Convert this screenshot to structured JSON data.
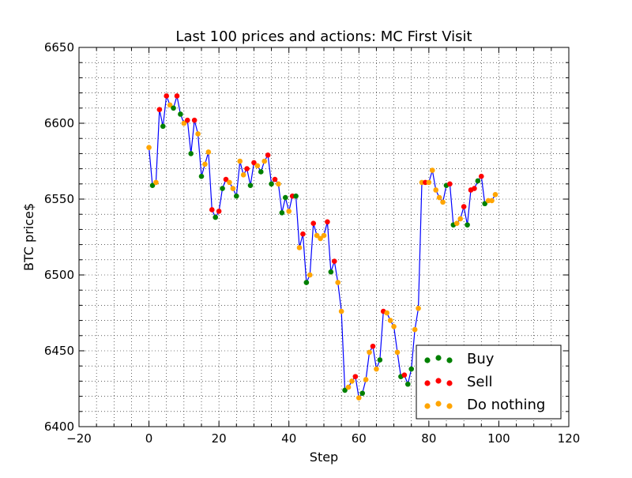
{
  "chart_data": {
    "type": "scatter",
    "title": "Last 100 prices and actions: MC First Visit",
    "xlabel": "Step",
    "ylabel": "BTC price$",
    "xlim": [
      -20,
      120
    ],
    "ylim": [
      6400,
      6650
    ],
    "x_major_ticks": [
      -20,
      0,
      20,
      40,
      60,
      80,
      100,
      120
    ],
    "y_major_ticks": [
      6400,
      6450,
      6500,
      6550,
      6600,
      6650
    ],
    "x_tick_labels": [
      "−20",
      "0",
      "20",
      "40",
      "60",
      "80",
      "100",
      "120"
    ],
    "y_tick_labels": [
      "6400",
      "6450",
      "6500",
      "6550",
      "6600",
      "6650"
    ],
    "x_minor_step": 5,
    "y_minor_step": 10,
    "grid": "dotted, major and minor",
    "legend_position": "bottom-right",
    "line_color": "#0000ff",
    "legend": [
      {
        "label": "Buy",
        "color": "#008000"
      },
      {
        "label": "Sell",
        "color": "#ff0000"
      },
      {
        "label": "Do nothing",
        "color": "#ffa500"
      }
    ],
    "action_colors": {
      "buy": "#008000",
      "sell": "#ff0000",
      "hold": "#ffa500"
    },
    "prices": [
      6584,
      6559,
      6561,
      6609,
      6598,
      6618,
      6612,
      6610,
      6618,
      6606,
      6600,
      6602,
      6580,
      6602,
      6593,
      6565,
      6573,
      6581,
      6543,
      6538,
      6542,
      6557,
      6563,
      6561,
      6557,
      6552,
      6575,
      6566,
      6570,
      6559,
      6574,
      6572,
      6568,
      6575,
      6579,
      6560,
      6563,
      6560,
      6541,
      6551,
      6542,
      6552,
      6552,
      6518,
      6527,
      6495,
      6500,
      6534,
      6526,
      6524,
      6526,
      6535,
      6502,
      6509,
      6495,
      6476,
      6424,
      6426,
      6430,
      6433,
      6419,
      6422,
      6431,
      6449,
      6453,
      6438,
      6444,
      6476,
      6475,
      6470,
      6466,
      6449,
      6433,
      6434,
      6428,
      6438,
      6464,
      6478,
      6561,
      6561,
      6561,
      6569,
      6556,
      6551,
      6548,
      6559,
      6560,
      6533,
      6534,
      6537,
      6545,
      6533,
      6556,
      6557,
      6562,
      6565,
      6547,
      6549,
      6549,
      6553
    ],
    "actions": [
      "hold",
      "buy",
      "hold",
      "sell",
      "buy",
      "sell",
      "hold",
      "buy",
      "sell",
      "buy",
      "hold",
      "sell",
      "buy",
      "sell",
      "hold",
      "buy",
      "hold",
      "hold",
      "sell",
      "buy",
      "sell",
      "buy",
      "sell",
      "hold",
      "hold",
      "buy",
      "hold",
      "hold",
      "sell",
      "buy",
      "sell",
      "hold",
      "buy",
      "hold",
      "sell",
      "buy",
      "sell",
      "hold",
      "buy",
      "buy",
      "hold",
      "sell",
      "buy",
      "hold",
      "sell",
      "buy",
      "hold",
      "sell",
      "hold",
      "hold",
      "hold",
      "sell",
      "buy",
      "sell",
      "hold",
      "hold",
      "buy",
      "hold",
      "hold",
      "sell",
      "hold",
      "buy",
      "hold",
      "hold",
      "sell",
      "hold",
      "buy",
      "sell",
      "hold",
      "hold",
      "hold",
      "hold",
      "buy",
      "sell",
      "buy",
      "buy",
      "hold",
      "hold",
      "hold",
      "sell",
      "hold",
      "hold",
      "hold",
      "hold",
      "hold",
      "buy",
      "sell",
      "buy",
      "hold",
      "hold",
      "sell",
      "buy",
      "sell",
      "sell",
      "buy",
      "sell",
      "buy",
      "hold",
      "hold",
      "hold"
    ]
  }
}
